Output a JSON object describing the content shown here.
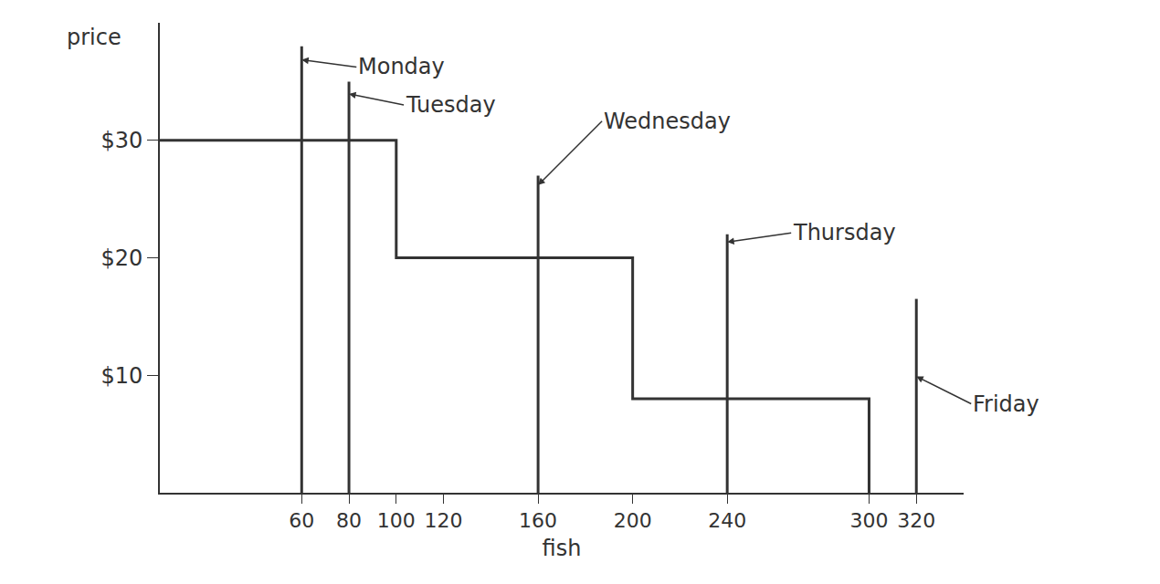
{
  "chart_data": {
    "type": "line",
    "ylabel": "price",
    "xlabel": "fish",
    "step": {
      "x": [
        0,
        100,
        100,
        200,
        200,
        300,
        300
      ],
      "values": [
        30,
        30,
        20,
        20,
        8,
        8,
        0
      ]
    },
    "days": [
      {
        "label": "Monday",
        "x": 60,
        "top": 38
      },
      {
        "label": "Tuesday",
        "x": 80,
        "top": 35
      },
      {
        "label": "Wednesday",
        "x": 160,
        "top": 27
      },
      {
        "label": "Thursday",
        "x": 240,
        "top": 22
      },
      {
        "label": "Friday",
        "x": 320,
        "top": 16.5
      }
    ],
    "color": "#333333",
    "xlim": [
      0,
      340
    ],
    "xticks": [
      60,
      80,
      100,
      120,
      160,
      200,
      240,
      300,
      320
    ],
    "ylim": [
      0,
      40
    ],
    "yticks": [
      {
        "value": 10,
        "label": "$10"
      },
      {
        "value": 20,
        "label": "$20"
      },
      {
        "value": 30,
        "label": "$30"
      }
    ],
    "grid": false
  }
}
